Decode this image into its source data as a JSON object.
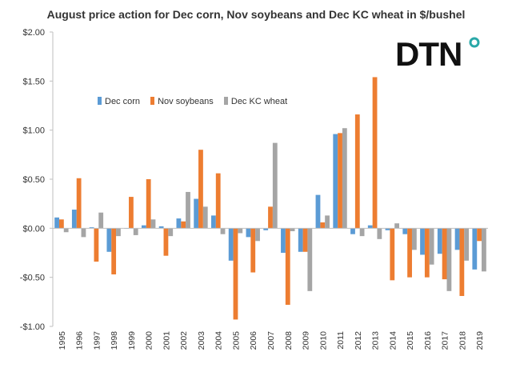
{
  "chart_data": {
    "type": "bar",
    "title": "August price action for Dec corn, Nov soybeans and Dec KC wheat in $/bushel",
    "categories": [
      "1995",
      "1996",
      "1997",
      "1998",
      "1999",
      "2000",
      "2001",
      "2002",
      "2003",
      "2004",
      "2005",
      "2006",
      "2007",
      "2008",
      "2009",
      "2010",
      "2011",
      "2012",
      "2013",
      "2014",
      "2015",
      "2016",
      "2017",
      "2018",
      "2019"
    ],
    "series": [
      {
        "name": "Dec corn",
        "color": "#5B9BD5",
        "values": [
          0.11,
          0.19,
          0.01,
          -0.24,
          0.0,
          0.03,
          0.02,
          0.1,
          0.3,
          0.13,
          -0.33,
          -0.09,
          -0.02,
          -0.25,
          -0.24,
          0.34,
          0.96,
          -0.06,
          0.03,
          -0.02,
          -0.06,
          -0.27,
          -0.26,
          -0.22,
          -0.42
        ]
      },
      {
        "name": "Nov soybeans",
        "color": "#ED7D31",
        "values": [
          0.09,
          0.51,
          -0.34,
          -0.47,
          0.32,
          0.5,
          -0.28,
          0.07,
          0.8,
          0.56,
          -0.93,
          -0.45,
          0.22,
          -0.78,
          -0.24,
          0.06,
          0.97,
          1.16,
          1.54,
          -0.53,
          -0.5,
          -0.5,
          -0.52,
          -0.69,
          -0.13
        ]
      },
      {
        "name": "Dec KC wheat",
        "color": "#A5A5A5",
        "values": [
          -0.04,
          -0.09,
          0.16,
          -0.08,
          -0.07,
          0.09,
          -0.08,
          0.37,
          0.22,
          -0.06,
          -0.05,
          -0.13,
          0.87,
          -0.03,
          -0.64,
          0.13,
          1.02,
          -0.08,
          -0.11,
          0.05,
          -0.22,
          -0.37,
          -0.64,
          -0.33,
          -0.44
        ]
      }
    ],
    "ylim": [
      -1.0,
      2.0
    ],
    "yticks": [
      2.0,
      1.5,
      1.0,
      0.5,
      0.0,
      -0.5,
      -1.0
    ],
    "ytick_labels": [
      "$2.00",
      "$1.50",
      "$1.00",
      "$0.50",
      "$0.00",
      "-$0.50",
      "-$1.00"
    ],
    "grid": false,
    "legend_position": "upper-left inside plot"
  },
  "logo": {
    "text": "DTN",
    "dot_color": "#29A8A8"
  }
}
